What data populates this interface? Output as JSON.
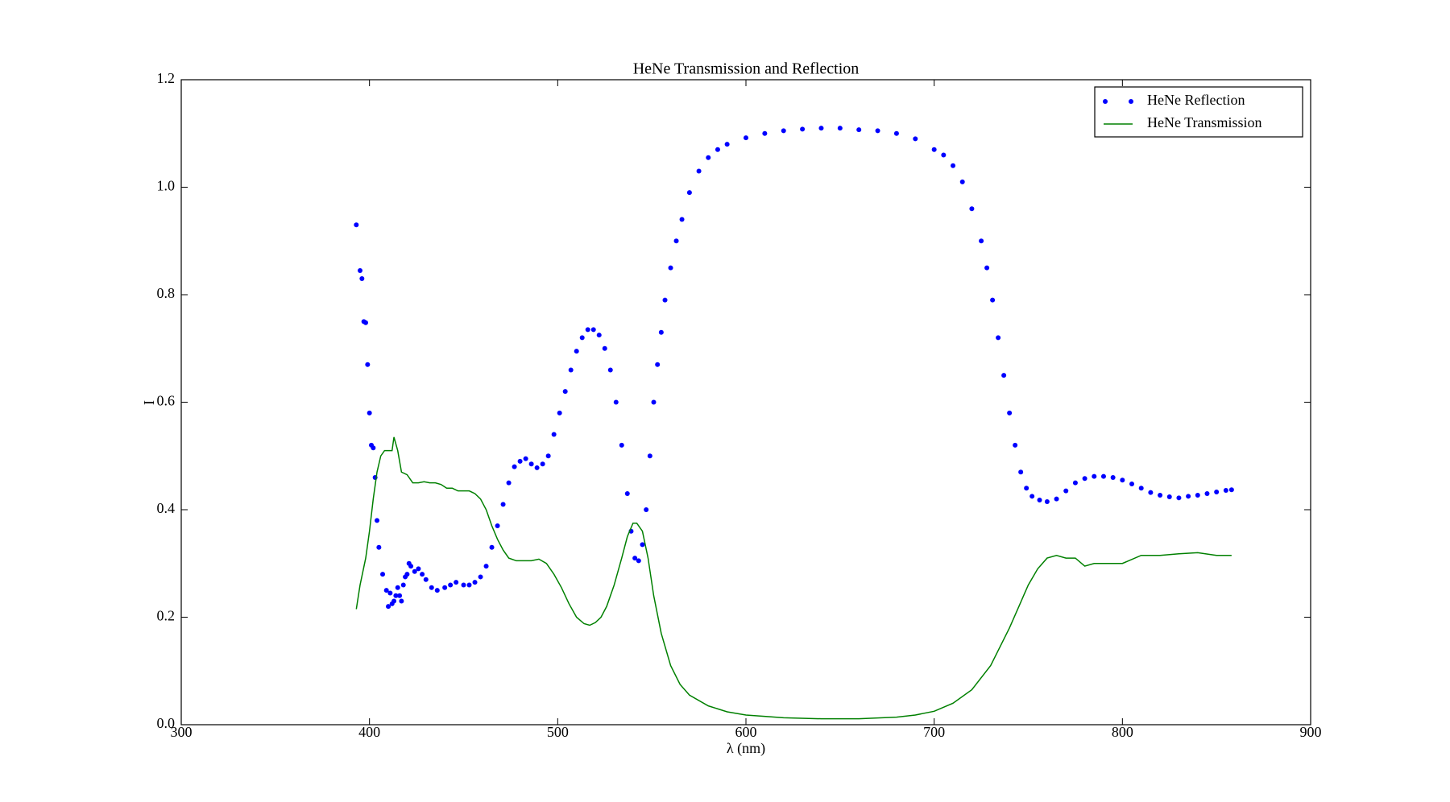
{
  "chart_data": {
    "type": "line",
    "title": "HeNe Transmission and Reflection",
    "x_label": "λ (nm)",
    "y_label": "I",
    "xlim": [
      300,
      900
    ],
    "xticks": [
      300,
      400,
      500,
      600,
      700,
      800,
      900
    ],
    "ylim": [
      0,
      1.2
    ],
    "yticks": [
      {
        "value": 0,
        "label": "0.0"
      },
      0.2,
      0.4,
      0.6,
      0.8,
      {
        "value": 1,
        "label": "1.0"
      },
      1.2
    ],
    "legend": "upper right",
    "series": [
      {
        "name": "HeNe Reflection",
        "color": "#0000ff",
        "mode": "markers",
        "x": [
          393,
          395,
          396,
          397,
          398,
          399,
          400,
          401,
          402,
          403,
          404,
          405,
          407,
          409,
          410,
          411,
          412,
          413,
          414,
          415,
          416,
          417,
          418,
          419,
          420,
          421,
          422,
          424,
          426,
          428,
          430,
          433,
          436,
          440,
          443,
          446,
          450,
          453,
          456,
          459,
          462,
          465,
          468,
          471,
          474,
          477,
          480,
          483,
          486,
          489,
          492,
          495,
          498,
          501,
          504,
          507,
          510,
          513,
          516,
          519,
          522,
          525,
          528,
          531,
          534,
          537,
          539,
          541,
          543,
          545,
          547,
          549,
          551,
          553,
          555,
          557,
          560,
          563,
          566,
          570,
          575,
          580,
          585,
          590,
          600,
          610,
          620,
          630,
          640,
          650,
          660,
          670,
          680,
          690,
          700,
          705,
          710,
          715,
          720,
          725,
          728,
          731,
          734,
          737,
          740,
          743,
          746,
          749,
          752,
          756,
          760,
          765,
          770,
          775,
          780,
          785,
          790,
          795,
          800,
          805,
          810,
          815,
          820,
          825,
          830,
          835,
          840,
          845,
          850,
          855,
          858
        ],
        "values": [
          0.93,
          0.845,
          0.83,
          0.75,
          0.748,
          0.67,
          0.58,
          0.52,
          0.515,
          0.46,
          0.38,
          0.33,
          0.28,
          0.25,
          0.22,
          0.245,
          0.225,
          0.23,
          0.24,
          0.255,
          0.24,
          0.23,
          0.26,
          0.275,
          0.28,
          0.3,
          0.295,
          0.285,
          0.29,
          0.28,
          0.27,
          0.255,
          0.25,
          0.255,
          0.26,
          0.265,
          0.26,
          0.26,
          0.265,
          0.275,
          0.295,
          0.33,
          0.37,
          0.41,
          0.45,
          0.48,
          0.49,
          0.495,
          0.485,
          0.478,
          0.485,
          0.5,
          0.54,
          0.58,
          0.62,
          0.66,
          0.695,
          0.72,
          0.735,
          0.735,
          0.725,
          0.7,
          0.66,
          0.6,
          0.52,
          0.43,
          0.36,
          0.31,
          0.305,
          0.335,
          0.4,
          0.5,
          0.6,
          0.67,
          0.73,
          0.79,
          0.85,
          0.9,
          0.94,
          0.99,
          1.03,
          1.055,
          1.07,
          1.08,
          1.092,
          1.1,
          1.105,
          1.108,
          1.11,
          1.11,
          1.107,
          1.105,
          1.1,
          1.09,
          1.07,
          1.06,
          1.04,
          1.01,
          0.96,
          0.9,
          0.85,
          0.79,
          0.72,
          0.65,
          0.58,
          0.52,
          0.47,
          0.44,
          0.425,
          0.418,
          0.415,
          0.42,
          0.435,
          0.45,
          0.458,
          0.462,
          0.462,
          0.46,
          0.455,
          0.448,
          0.44,
          0.432,
          0.427,
          0.424,
          0.422,
          0.425,
          0.427,
          0.43,
          0.433,
          0.436,
          0.437
        ]
      },
      {
        "name": "HeNe Transmission",
        "color": "#008000",
        "mode": "lines",
        "x": [
          393,
          395,
          398,
          400,
          402,
          404,
          406,
          408,
          410,
          412,
          413,
          415,
          417,
          420,
          423,
          426,
          429,
          432,
          435,
          438,
          441,
          444,
          447,
          450,
          453,
          456,
          459,
          462,
          465,
          468,
          471,
          474,
          478,
          482,
          486,
          490,
          494,
          498,
          502,
          506,
          510,
          514,
          517,
          520,
          523,
          526,
          530,
          534,
          537,
          540,
          542,
          545,
          548,
          551,
          555,
          560,
          565,
          570,
          580,
          590,
          600,
          620,
          640,
          660,
          680,
          690,
          700,
          710,
          720,
          730,
          740,
          745,
          750,
          755,
          760,
          765,
          770,
          775,
          780,
          785,
          790,
          800,
          810,
          820,
          830,
          840,
          850,
          858
        ],
        "values": [
          0.215,
          0.26,
          0.31,
          0.36,
          0.42,
          0.47,
          0.5,
          0.51,
          0.51,
          0.51,
          0.535,
          0.51,
          0.47,
          0.465,
          0.45,
          0.45,
          0.452,
          0.45,
          0.45,
          0.447,
          0.44,
          0.44,
          0.435,
          0.435,
          0.435,
          0.43,
          0.42,
          0.4,
          0.37,
          0.345,
          0.325,
          0.31,
          0.305,
          0.305,
          0.305,
          0.308,
          0.3,
          0.28,
          0.255,
          0.225,
          0.2,
          0.188,
          0.185,
          0.19,
          0.2,
          0.22,
          0.26,
          0.31,
          0.35,
          0.375,
          0.375,
          0.36,
          0.31,
          0.24,
          0.17,
          0.11,
          0.075,
          0.055,
          0.035,
          0.024,
          0.018,
          0.013,
          0.011,
          0.011,
          0.014,
          0.018,
          0.025,
          0.04,
          0.065,
          0.11,
          0.18,
          0.22,
          0.26,
          0.29,
          0.31,
          0.315,
          0.31,
          0.31,
          0.295,
          0.3,
          0.3,
          0.3,
          0.315,
          0.315,
          0.318,
          0.32,
          0.315,
          0.315
        ]
      }
    ]
  }
}
